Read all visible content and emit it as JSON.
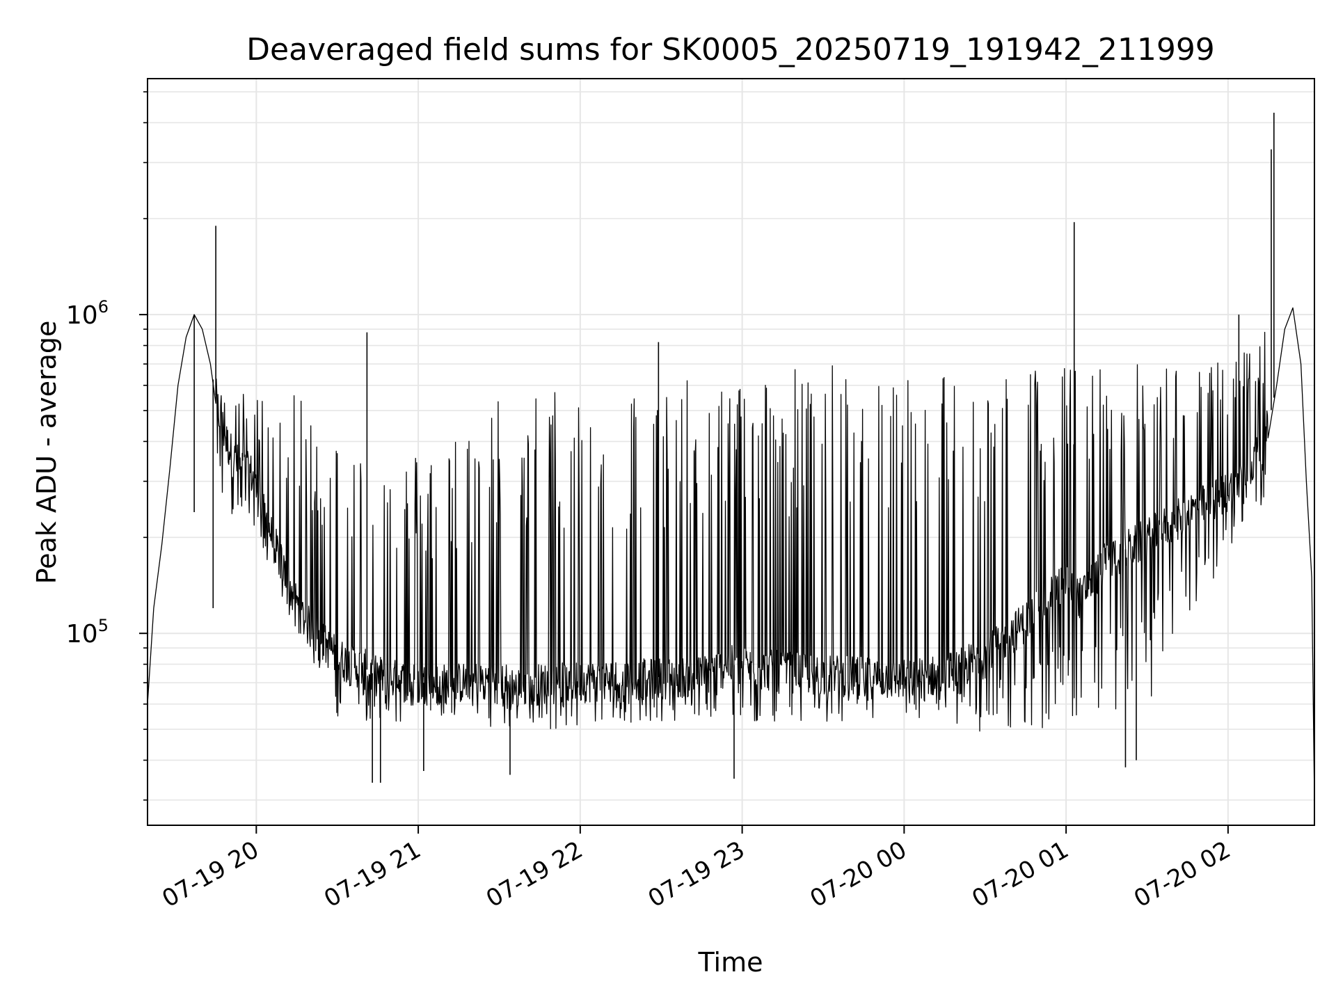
{
  "chart_data": {
    "type": "line",
    "title": "Deaveraged field sums for SK0005_20250719_191942_211999",
    "xlabel": "Time",
    "ylabel": "Peak ADU - average",
    "x_range": [
      "2025-07-19 19:19:42",
      "2025-07-20 02:32:00"
    ],
    "y_scale": "log",
    "ylim": [
      25000,
      5500000
    ],
    "grid": true,
    "x_ticks": [
      {
        "label": "07-19 20",
        "time": "2025-07-19 20:00"
      },
      {
        "label": "07-19 21",
        "time": "2025-07-19 21:00"
      },
      {
        "label": "07-19 22",
        "time": "2025-07-19 22:00"
      },
      {
        "label": "07-19 23",
        "time": "2025-07-19 23:00"
      },
      {
        "label": "07-20 00",
        "time": "2025-07-20 00:00"
      },
      {
        "label": "07-20 01",
        "time": "2025-07-20 01:00"
      },
      {
        "label": "07-20 02",
        "time": "2025-07-20 02:00"
      }
    ],
    "y_ticks": [
      {
        "base": "10",
        "exp": "5",
        "value": 100000
      },
      {
        "base": "10",
        "exp": "6",
        "value": 1000000
      }
    ],
    "series": [
      {
        "color": "#000000",
        "x": [
          "2025-07-19 19:19:42",
          "2025-07-19 19:22",
          "2025-07-19 19:25",
          "2025-07-19 19:28",
          "2025-07-19 19:31",
          "2025-07-19 19:34",
          "2025-07-19 19:37",
          "2025-07-19 19:40",
          "2025-07-19 19:43",
          "2025-07-19 19:46",
          "2025-07-19 19:49",
          "2025-07-19 19:52",
          "2025-07-19 19:55",
          "2025-07-19 19:58",
          "2025-07-19 20:02",
          "2025-07-19 20:06",
          "2025-07-19 20:10",
          "2025-07-19 20:14",
          "2025-07-19 20:18",
          "2025-07-19 20:22",
          "2025-07-19 20:26",
          "2025-07-19 20:30",
          "2025-07-19 20:35",
          "2025-07-19 20:40",
          "2025-07-19 20:43",
          "2025-07-19 20:46",
          "2025-07-19 20:52",
          "2025-07-19 21:00",
          "2025-07-19 21:10",
          "2025-07-19 21:20",
          "2025-07-19 21:30",
          "2025-07-19 21:33",
          "2025-07-19 21:36",
          "2025-07-19 21:45",
          "2025-07-19 22:00",
          "2025-07-19 22:15",
          "2025-07-19 22:30",
          "2025-07-19 22:45",
          "2025-07-19 22:55",
          "2025-07-19 23:05",
          "2025-07-19 23:20",
          "2025-07-19 23:40",
          "2025-07-20 00:00",
          "2025-07-20 00:15",
          "2025-07-20 00:30",
          "2025-07-20 00:45",
          "2025-07-20 01:00",
          "2025-07-20 01:05",
          "2025-07-20 01:15",
          "2025-07-20 01:30",
          "2025-07-20 01:45",
          "2025-07-20 02:00",
          "2025-07-20 02:08",
          "2025-07-20 02:14",
          "2025-07-20 02:18",
          "2025-07-20 02:21",
          "2025-07-20 02:24",
          "2025-07-20 02:27",
          "2025-07-20 02:29",
          "2025-07-20 02:31",
          "2025-07-20 02:32"
        ],
        "y": [
          60000,
          120000,
          190000,
          330000,
          600000,
          850000,
          1000000,
          900000,
          700000,
          500000,
          400000,
          350000,
          330000,
          320000,
          250000,
          200000,
          160000,
          130000,
          110000,
          100000,
          92000,
          85000,
          80000,
          78000,
          75000,
          74000,
          72000,
          70000,
          70000,
          71000,
          72000,
          70000,
          68000,
          70000,
          71000,
          72000,
          73000,
          74000,
          80000,
          78000,
          76000,
          74000,
          72000,
          75000,
          85000,
          110000,
          150000,
          130000,
          170000,
          200000,
          240000,
          280000,
          330000,
          420000,
          600000,
          900000,
          1050000,
          700000,
          300000,
          150000,
          30000
        ],
        "envelope": {
          "t": [
            "2025-07-19 19:45",
            "2025-07-19 20:00",
            "2025-07-19 20:15",
            "2025-07-19 20:30",
            "2025-07-19 20:45",
            "2025-07-19 21:00",
            "2025-07-19 21:15",
            "2025-07-19 21:30",
            "2025-07-19 21:45",
            "2025-07-19 22:00",
            "2025-07-19 22:15",
            "2025-07-19 22:30",
            "2025-07-19 22:45",
            "2025-07-19 23:00",
            "2025-07-19 23:15",
            "2025-07-19 23:30",
            "2025-07-19 23:45",
            "2025-07-20 00:00",
            "2025-07-20 00:15",
            "2025-07-20 00:30",
            "2025-07-20 00:45",
            "2025-07-20 01:00",
            "2025-07-20 01:15",
            "2025-07-20 01:30",
            "2025-07-20 01:45",
            "2025-07-20 02:00",
            "2025-07-20 02:15"
          ],
          "high": [
            600000,
            560000,
            560000,
            420000,
            380000,
            380000,
            450000,
            580000,
            600000,
            610000,
            620000,
            630000,
            630000,
            680000,
            700000,
            710000,
            700000,
            690000,
            690000,
            700000,
            700000,
            700000,
            700000,
            710000,
            700000,
            720000,
            950000
          ],
          "low": [
            250000,
            200000,
            100000,
            55000,
            50000,
            55000,
            55000,
            50000,
            50000,
            50000,
            52000,
            52000,
            52000,
            52000,
            52000,
            52000,
            52000,
            52000,
            50000,
            48000,
            48000,
            50000,
            50000,
            60000,
            100000,
            180000,
            250000
          ]
        },
        "spikes": [
          {
            "time": "2025-07-19 19:45",
            "peak": 1900000
          },
          {
            "time": "2025-07-19 20:41",
            "peak": 880000
          },
          {
            "time": "2025-07-19 22:29",
            "peak": 820000
          },
          {
            "time": "2025-07-20 01:03",
            "peak": 1950000
          },
          {
            "time": "2025-07-20 02:16",
            "peak": 3300000
          },
          {
            "time": "2025-07-20 02:17",
            "peak": 4300000
          },
          {
            "time": "2025-07-20 02:04",
            "peak": 1000000
          }
        ],
        "dips": [
          {
            "time": "2025-07-19 19:37",
            "low": 240000
          },
          {
            "time": "2025-07-19 19:44",
            "low": 120000
          },
          {
            "time": "2025-07-19 20:43",
            "low": 34000
          },
          {
            "time": "2025-07-19 20:46",
            "low": 34000
          },
          {
            "time": "2025-07-19 21:02",
            "low": 37000
          },
          {
            "time": "2025-07-19 21:34",
            "low": 36000
          },
          {
            "time": "2025-07-19 22:57",
            "low": 35000
          },
          {
            "time": "2025-07-20 01:22",
            "low": 38000
          },
          {
            "time": "2025-07-20 01:26",
            "low": 40000
          }
        ]
      }
    ]
  }
}
